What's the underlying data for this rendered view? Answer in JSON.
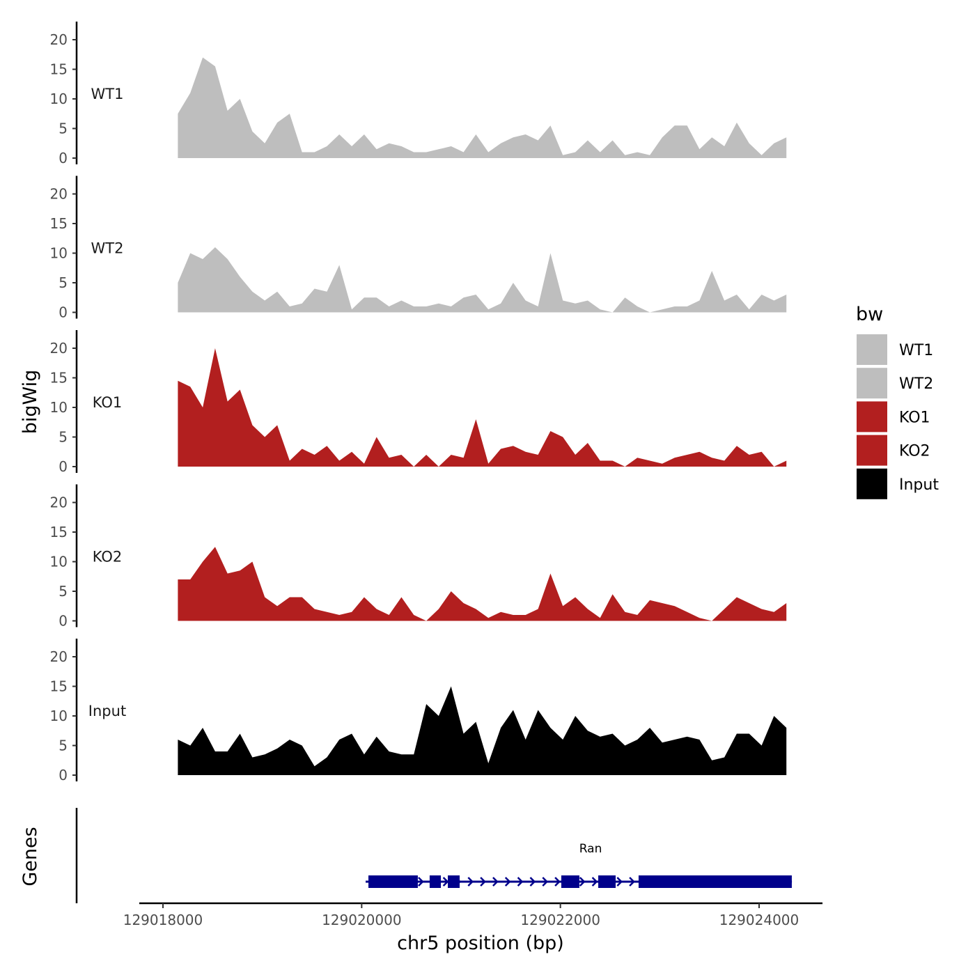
{
  "chart_data": {
    "type": "area",
    "title": "",
    "xlabel": "chr5 position (bp)",
    "ylabel": "bigWig",
    "gene_track_label": "Genes",
    "xlim": [
      129017770,
      129024640
    ],
    "x_ticks": [
      129018000,
      129020000,
      129022000,
      129024000
    ],
    "x_tick_labels": [
      "129018000",
      "129020000",
      "129022000",
      "129024000"
    ],
    "ylim": [
      0,
      23
    ],
    "y_ticks": [
      0,
      5,
      10,
      15,
      20
    ],
    "y_tick_labels": [
      "0",
      "5",
      "10",
      "15",
      "20"
    ],
    "x_start": 129018150,
    "x_step": 125,
    "legend": {
      "title": "bw",
      "position": "right",
      "entries": [
        {
          "label": "WT1",
          "color": "#bebebe"
        },
        {
          "label": "WT2",
          "color": "#bebebe"
        },
        {
          "label": "KO1",
          "color": "#b21f1f"
        },
        {
          "label": "KO2",
          "color": "#b21f1f"
        },
        {
          "label": "Input",
          "color": "#000000"
        }
      ]
    },
    "series": [
      {
        "name": "WT1",
        "color": "#bebebe",
        "values": [
          7.5,
          11,
          17,
          15.5,
          8,
          10,
          4.5,
          2.5,
          6,
          7.5,
          1,
          1,
          2,
          4,
          2,
          4,
          1.5,
          2.5,
          2,
          1,
          1,
          1.5,
          2,
          1,
          4,
          1,
          2.5,
          3.5,
          4,
          3,
          5.5,
          0.5,
          1,
          3,
          1,
          3,
          0.5,
          1,
          0.5,
          3.5,
          5.5,
          5.5,
          1.5,
          3.5,
          2,
          6,
          2.5,
          0.5,
          2.5,
          3.5
        ]
      },
      {
        "name": "WT2",
        "color": "#bebebe",
        "values": [
          5,
          10,
          9,
          11,
          9,
          6,
          3.5,
          2,
          3.5,
          1,
          1.5,
          4,
          3.5,
          8,
          0.5,
          2.5,
          2.5,
          1,
          2,
          1,
          1,
          1.5,
          1,
          2.5,
          3,
          0.5,
          1.5,
          5,
          2,
          1,
          10,
          2,
          1.5,
          2,
          0.5,
          0,
          2.5,
          1,
          0,
          0.5,
          1,
          1,
          2,
          7,
          2,
          3,
          0.5,
          3,
          2,
          3
        ]
      },
      {
        "name": "KO1",
        "color": "#b21f1f",
        "values": [
          14.5,
          13.5,
          10,
          20,
          11,
          13,
          7,
          5,
          7,
          1,
          3,
          2,
          3.5,
          1,
          2.5,
          0.5,
          5,
          1.5,
          2,
          0,
          2,
          0,
          2,
          1.5,
          8,
          0.5,
          3,
          3.5,
          2.5,
          2,
          6,
          5,
          2,
          4,
          1,
          1,
          0,
          1.5,
          1,
          0.5,
          1.5,
          2,
          2.5,
          1.5,
          1,
          3.5,
          2,
          2.5,
          0,
          1
        ]
      },
      {
        "name": "KO2",
        "color": "#b21f1f",
        "values": [
          7,
          7,
          10,
          12.5,
          8,
          8.5,
          10,
          4,
          2.5,
          4,
          4,
          2,
          1.5,
          1,
          1.5,
          4,
          2,
          1,
          4,
          1,
          0,
          2,
          5,
          3,
          2,
          0.5,
          1.5,
          1,
          1,
          2,
          8,
          2.5,
          4,
          2,
          0.5,
          4.5,
          1.5,
          1,
          3.5,
          3,
          2.5,
          1.5,
          0.5,
          0,
          2,
          4,
          3,
          2,
          1.5,
          3
        ]
      },
      {
        "name": "Input",
        "color": "#000000",
        "values": [
          6,
          5,
          8,
          4,
          4,
          7,
          3,
          3.5,
          4.5,
          6,
          5,
          1.5,
          3,
          6,
          7,
          3.5,
          6.5,
          4,
          3.5,
          3.5,
          12,
          10,
          15,
          7,
          9,
          2,
          8,
          11,
          6,
          11,
          8,
          6,
          10,
          7.5,
          6.5,
          7,
          5,
          6,
          8,
          5.5,
          6,
          6.5,
          6,
          2.5,
          3,
          7,
          7,
          5,
          10,
          8
        ]
      }
    ],
    "genes": [
      {
        "name": "Ran",
        "strand": "+",
        "start": 129020040,
        "end": 129024330,
        "color": "#00008b",
        "exons": [
          [
            129020068,
            129020565
          ],
          [
            129020684,
            129020797
          ],
          [
            129020867,
            129020986
          ],
          [
            129022009,
            129022191
          ],
          [
            129022381,
            129022556
          ],
          [
            129022787,
            129024329
          ]
        ]
      }
    ]
  }
}
